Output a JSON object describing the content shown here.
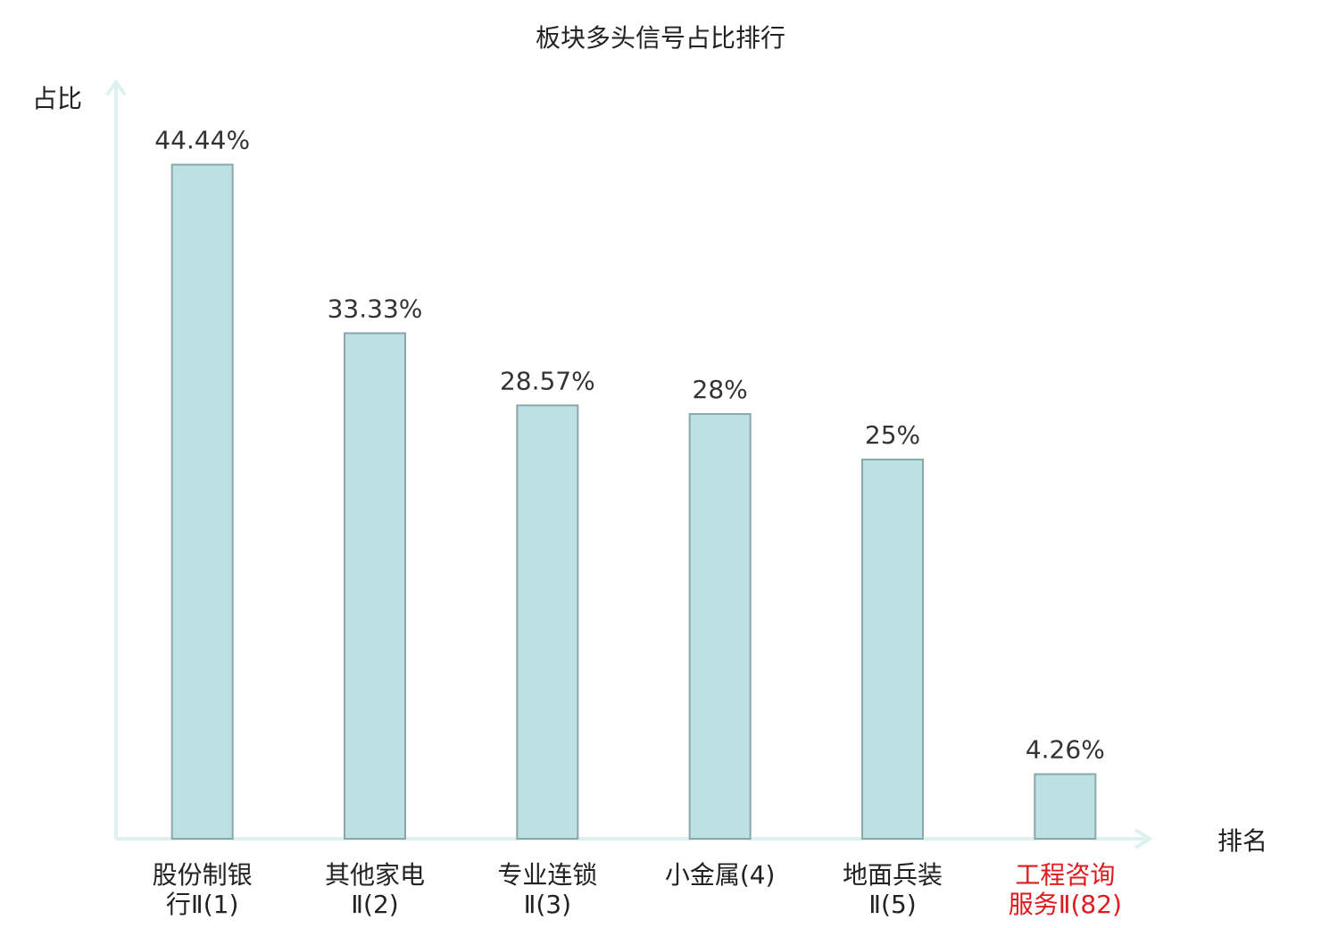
{
  "chart_data": {
    "type": "bar",
    "title": "板块多头信号占比排行",
    "y_label": "占比",
    "x_label": "排名",
    "categories": [
      "股份制银行Ⅱ(1)",
      "其他家电Ⅱ(2)",
      "专业连锁Ⅱ(3)",
      "小金属(4)",
      "地面兵装Ⅱ(5)",
      "工程咨询服务Ⅱ(82)"
    ],
    "values": [
      44.44,
      33.33,
      28.57,
      28,
      25,
      4.26
    ],
    "value_labels": [
      "44.44%",
      "33.33%",
      "28.57%",
      "28%",
      "25%",
      "4.26%"
    ],
    "color": "#bde0e2",
    "edge_color": "#8aa7a9",
    "label_colors": [
      "#222222",
      "#222222",
      "#222222",
      "#222222",
      "#222222",
      "#e0191e"
    ],
    "ylim": [
      0,
      50
    ],
    "grid": false
  }
}
